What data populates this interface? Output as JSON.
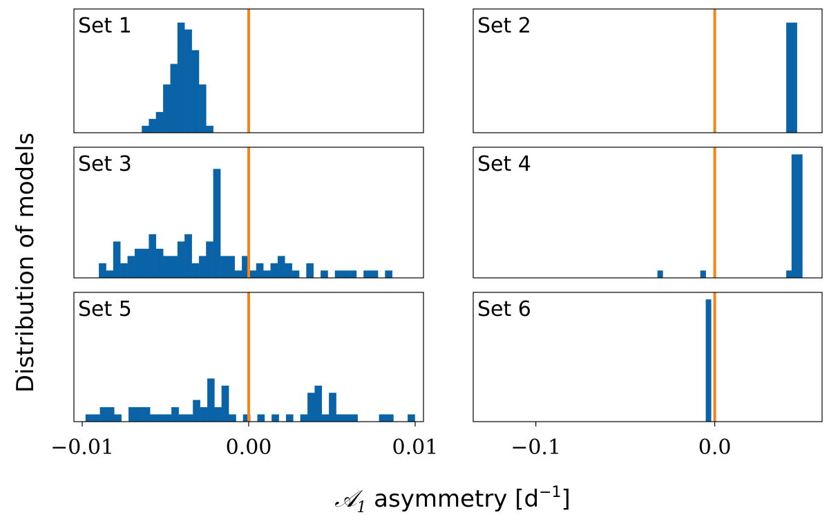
{
  "ylabel": "Distribution of models",
  "xlabel": {
    "symbol": "𝒜",
    "subscript": "1",
    "text": " asymmetry [d",
    "superscript": "−1",
    "close": "]"
  },
  "colors": {
    "bars": "#0a63a6",
    "reference_line": "#f58518"
  },
  "chart_data": [
    {
      "type": "bar",
      "title": "Set 1",
      "column": "left",
      "xlim": [
        -0.0105,
        0.0105
      ],
      "ylim": [
        0,
        18
      ],
      "reference_x": 0.0,
      "bin_width": 0.00043,
      "bins": [
        [
          -0.0062,
          1
        ],
        [
          -0.00578,
          2
        ],
        [
          -0.00535,
          3
        ],
        [
          -0.00492,
          7
        ],
        [
          -0.00449,
          10
        ],
        [
          -0.00406,
          16
        ],
        [
          -0.00363,
          15
        ],
        [
          -0.0032,
          12
        ],
        [
          -0.00277,
          7
        ],
        [
          -0.00234,
          1
        ]
      ]
    },
    {
      "type": "bar",
      "title": "Set 2",
      "column": "right",
      "xlim": [
        -0.135,
        0.06
      ],
      "ylim": [
        0,
        18
      ],
      "reference_x": 0.0,
      "bin_width": 0.003,
      "bins": [
        [
          0.0415,
          16
        ],
        [
          0.0445,
          16
        ]
      ]
    },
    {
      "type": "bar",
      "title": "Set 3",
      "column": "left",
      "xlim": [
        -0.0105,
        0.0105
      ],
      "ylim": [
        0,
        18
      ],
      "reference_x": 0.0,
      "bin_width": 0.00043,
      "bins": [
        [
          -0.00878,
          2
        ],
        [
          -0.00835,
          1
        ],
        [
          -0.00792,
          5
        ],
        [
          -0.00749,
          2
        ],
        [
          -0.00706,
          3
        ],
        [
          -0.00663,
          4
        ],
        [
          -0.0062,
          4
        ],
        [
          -0.00578,
          6
        ],
        [
          -0.00535,
          4
        ],
        [
          -0.00492,
          3
        ],
        [
          -0.00449,
          3
        ],
        [
          -0.00406,
          5
        ],
        [
          -0.00363,
          6
        ],
        [
          -0.0032,
          2
        ],
        [
          -0.00277,
          3
        ],
        [
          -0.00234,
          5
        ],
        [
          -0.00191,
          15
        ],
        [
          -0.00148,
          3
        ],
        [
          -0.00105,
          3
        ],
        [
          -0.00062,
          1
        ],
        [
          -0.00019,
          3
        ],
        [
          0.00024,
          1
        ],
        [
          0.00067,
          2
        ],
        [
          0.0011,
          1
        ],
        [
          0.00153,
          2
        ],
        [
          0.00196,
          3
        ],
        [
          0.00239,
          2
        ],
        [
          0.00282,
          1
        ],
        [
          0.00325,
          0
        ],
        [
          0.00368,
          2
        ],
        [
          0.00411,
          0
        ],
        [
          0.00454,
          1
        ],
        [
          0.00497,
          0
        ],
        [
          0.0054,
          1
        ],
        [
          0.00583,
          1
        ],
        [
          0.00626,
          1
        ],
        [
          0.00669,
          0
        ],
        [
          0.00712,
          1
        ],
        [
          0.00755,
          1
        ],
        [
          0.00798,
          0
        ],
        [
          0.00841,
          1
        ]
      ]
    },
    {
      "type": "bar",
      "title": "Set 4",
      "column": "right",
      "xlim": [
        -0.135,
        0.06
      ],
      "ylim": [
        0,
        18
      ],
      "reference_x": 0.0,
      "bin_width": 0.003,
      "bins": [
        [
          -0.0305,
          1
        ],
        [
          -0.0065,
          1
        ],
        [
          0.0415,
          1
        ],
        [
          0.0445,
          17
        ],
        [
          0.0475,
          17
        ]
      ]
    },
    {
      "type": "bar",
      "title": "Set 5",
      "column": "left",
      "xlim": [
        -0.0105,
        0.0105
      ],
      "ylim": [
        0,
        18
      ],
      "reference_x": 0.0,
      "bin_width": 0.00043,
      "bins": [
        [
          -0.00958,
          1
        ],
        [
          -0.00915,
          1
        ],
        [
          -0.00872,
          2
        ],
        [
          -0.00829,
          2
        ],
        [
          -0.00786,
          1
        ],
        [
          -0.00743,
          0
        ],
        [
          -0.007,
          2
        ],
        [
          -0.00657,
          2
        ],
        [
          -0.00614,
          2
        ],
        [
          -0.00571,
          1
        ],
        [
          -0.00528,
          1
        ],
        [
          -0.00485,
          1
        ],
        [
          -0.00442,
          2
        ],
        [
          -0.00399,
          1
        ],
        [
          -0.00356,
          1
        ],
        [
          -0.00313,
          3
        ],
        [
          -0.0027,
          2
        ],
        [
          -0.00227,
          6
        ],
        [
          -0.00184,
          2
        ],
        [
          -0.00141,
          5
        ],
        [
          -0.00098,
          1
        ],
        [
          -0.00055,
          0
        ],
        [
          -0.00012,
          1
        ],
        [
          0.00031,
          0
        ],
        [
          0.00074,
          1
        ],
        [
          0.00117,
          0
        ],
        [
          0.0016,
          1
        ],
        [
          0.00203,
          0
        ],
        [
          0.00246,
          1
        ],
        [
          0.00289,
          0
        ],
        [
          0.00332,
          1
        ],
        [
          0.00375,
          4
        ],
        [
          0.00418,
          5
        ],
        [
          0.00461,
          1
        ],
        [
          0.00504,
          4
        ],
        [
          0.00547,
          1
        ],
        [
          0.0059,
          1
        ],
        [
          0.00633,
          1
        ],
        [
          0.00676,
          0
        ],
        [
          0.00719,
          0
        ],
        [
          0.00762,
          0
        ],
        [
          0.00805,
          1
        ],
        [
          0.00848,
          1
        ],
        [
          0.00891,
          0
        ],
        [
          0.00934,
          0
        ],
        [
          0.00977,
          1
        ]
      ]
    },
    {
      "type": "bar",
      "title": "Set 6",
      "column": "right",
      "xlim": [
        -0.135,
        0.06
      ],
      "ylim": [
        0,
        18
      ],
      "reference_x": 0.0,
      "bin_width": 0.003,
      "bins": [
        [
          -0.0035,
          17
        ]
      ]
    }
  ],
  "x_axes": {
    "left": {
      "ticks": [
        -0.01,
        0.0,
        0.01
      ],
      "tick_labels": [
        "−0.01",
        "0.00",
        "0.01"
      ]
    },
    "right": {
      "ticks": [
        -0.1,
        0.0
      ],
      "tick_labels": [
        "−0.1",
        "0.0"
      ]
    }
  }
}
